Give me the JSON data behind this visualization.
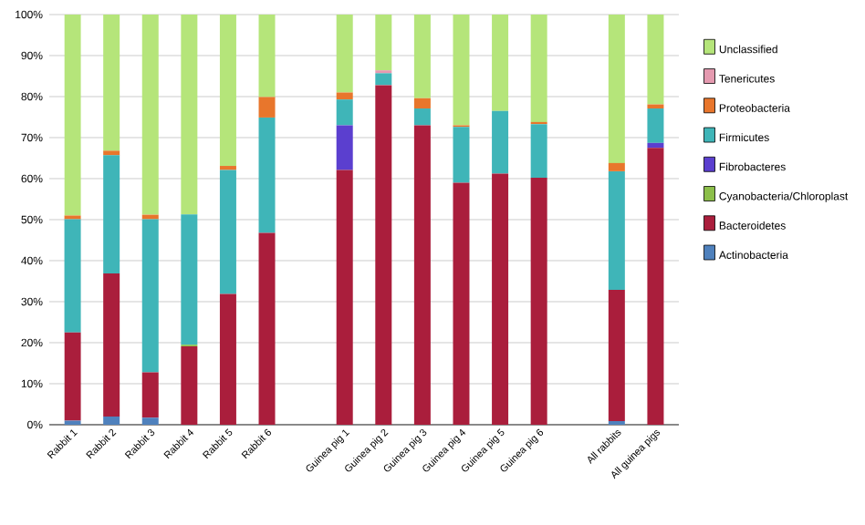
{
  "chart_data": {
    "type": "bar",
    "stacked": true,
    "categories": [
      "Rabbit 1",
      "Rabbit 2",
      "Rabbit 3",
      "Rabbit 4",
      "Rabbit 5",
      "Rabbit 6",
      null,
      "Guinea pig 1",
      "Guinea pig 2",
      "Guinea pig 3",
      "Guinea pig 4",
      "Guinea pig 5",
      "Guinea pig 6",
      null,
      "All rabbits",
      "All guinea pigs"
    ],
    "series": [
      {
        "name": "Actinobacteria",
        "color": "#4f81bd",
        "values": [
          1.0,
          2.0,
          1.7,
          0,
          0,
          0,
          null,
          0,
          0,
          0,
          0,
          0,
          0,
          null,
          0.9,
          0
        ]
      },
      {
        "name": "Bacteroidetes",
        "color": "#aa1e3c",
        "values": [
          21.5,
          34.9,
          11.1,
          19.1,
          31.9,
          46.8,
          null,
          62.1,
          82.8,
          73.0,
          59.0,
          61.2,
          60.2,
          null,
          32.0,
          67.5
        ]
      },
      {
        "name": "Cyanobacteria/Chloroplast",
        "color": "#8cbf4a",
        "values": [
          0,
          0,
          0,
          0.4,
          0,
          0,
          null,
          0,
          0,
          0,
          0,
          0,
          0,
          null,
          0,
          0
        ]
      },
      {
        "name": "Fibrobacteres",
        "color": "#5b3fcf",
        "values": [
          0,
          0,
          0,
          0,
          0,
          0,
          null,
          10.9,
          0,
          0,
          0,
          0,
          0,
          null,
          0,
          1.2
        ]
      },
      {
        "name": "Firmicutes",
        "color": "#3fb5b8",
        "values": [
          27.6,
          28.8,
          37.3,
          31.8,
          30.2,
          28.1,
          null,
          6.3,
          2.9,
          4.1,
          13.6,
          15.3,
          13.1,
          null,
          28.9,
          8.4
        ]
      },
      {
        "name": "Proteobacteria",
        "color": "#e8762c",
        "values": [
          0.9,
          1.1,
          1.1,
          0,
          1.0,
          5.0,
          null,
          1.7,
          0,
          2.5,
          0.4,
          0,
          0.5,
          null,
          2.0,
          1.0
        ]
      },
      {
        "name": "Tenericutes",
        "color": "#e59ab0",
        "values": [
          0,
          0,
          0,
          0,
          0,
          0,
          null,
          0,
          0.7,
          0,
          0,
          0,
          0,
          null,
          0,
          0
        ]
      },
      {
        "name": "Unclassified",
        "color": "#b5e57a",
        "values": [
          49.0,
          33.2,
          48.8,
          48.7,
          36.9,
          20.1,
          null,
          19.0,
          13.6,
          20.4,
          27.0,
          23.5,
          26.2,
          null,
          36.2,
          21.9
        ]
      }
    ],
    "ylim": [
      0,
      100
    ],
    "yticks": [
      {
        "value": 0,
        "label": "0%"
      },
      {
        "value": 10,
        "label": "10%"
      },
      {
        "value": 20,
        "label": "20%"
      },
      {
        "value": 30,
        "label": "30%"
      },
      {
        "value": 40,
        "label": "40%"
      },
      {
        "value": 50,
        "label": "50%"
      },
      {
        "value": 60,
        "label": "60%"
      },
      {
        "value": 70,
        "label": "70%"
      },
      {
        "value": 80,
        "label": "80%"
      },
      {
        "value": 90,
        "label": "90%"
      },
      {
        "value": 100,
        "label": "100%"
      }
    ],
    "grid": "y",
    "legend": "right"
  }
}
